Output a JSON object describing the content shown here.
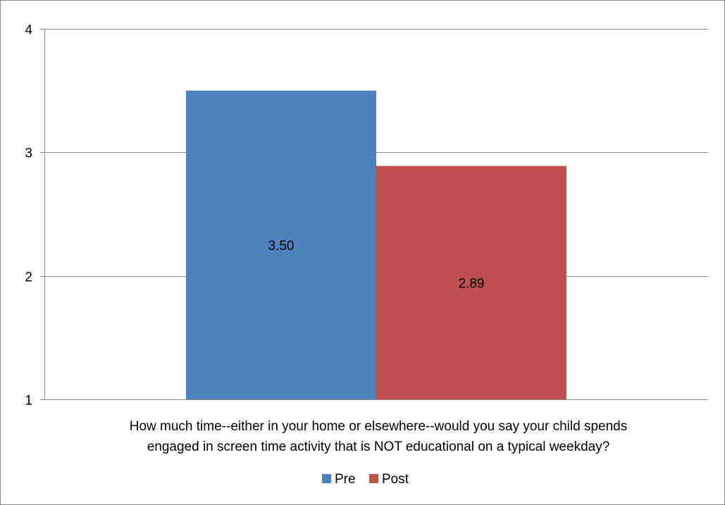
{
  "chart_data": {
    "type": "bar",
    "categories": [
      "How much time--either in your home or elsewhere--would you say your child spends engaged in screen time activity that is NOT educational on a typical weekday?"
    ],
    "category_label_lines": [
      "How much time--either in your home or elsewhere--would you say your child spends",
      "engaged in screen time activity that is NOT educational on a typical weekday?"
    ],
    "series": [
      {
        "name": "Pre",
        "values": [
          3.5
        ],
        "label": "3.50",
        "color": "#4F81BD"
      },
      {
        "name": "Post",
        "values": [
          2.89
        ],
        "label": "2.89",
        "color": "#C0504D"
      }
    ],
    "ylim": [
      1,
      4
    ],
    "yticks": [
      "1",
      "2",
      "3",
      "4"
    ],
    "ytick_values": [
      1,
      2,
      3,
      4
    ],
    "grid": true,
    "legend_position": "bottom",
    "gridline_color": "#868686"
  }
}
